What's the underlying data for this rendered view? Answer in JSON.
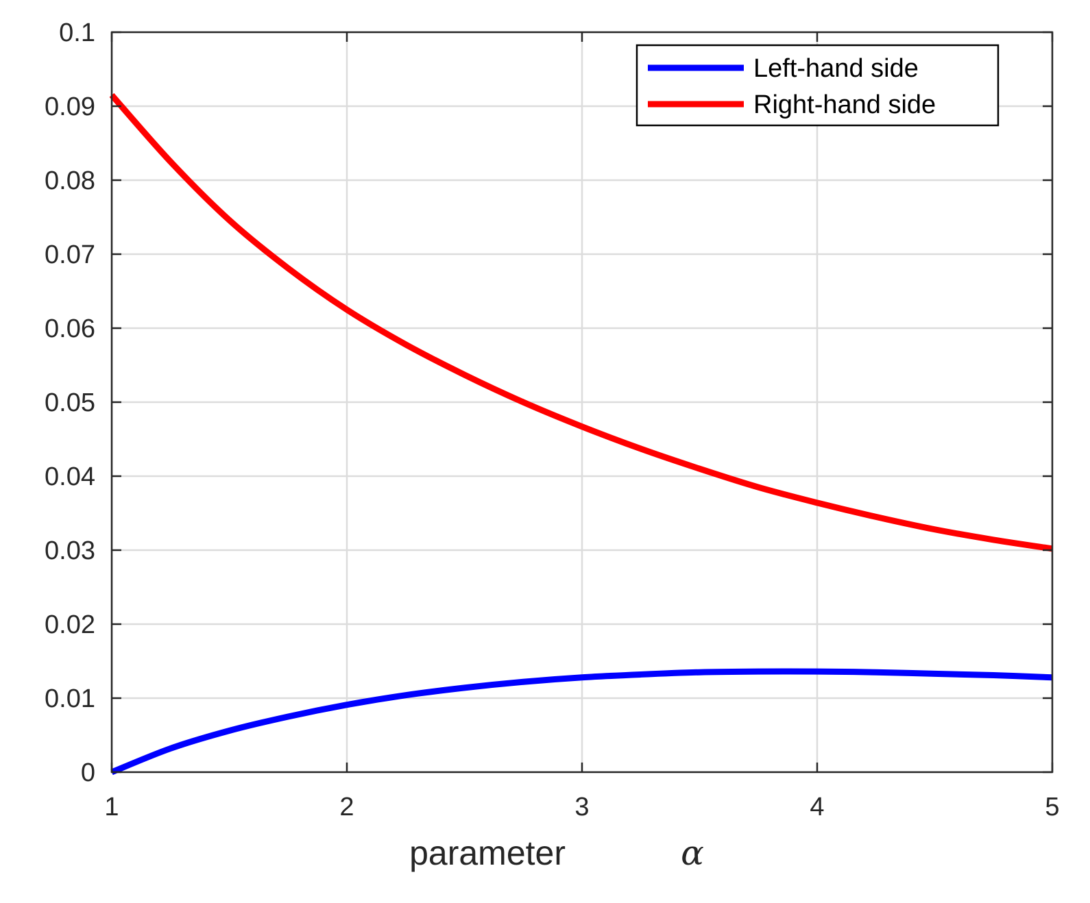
{
  "chart_data": {
    "type": "line",
    "xlabel": "parameter",
    "xlabel_symbol": "α",
    "ylabel": "",
    "xlim": [
      1,
      5
    ],
    "ylim": [
      0,
      0.1
    ],
    "xticks": [
      {
        "value": 1,
        "label": "1"
      },
      {
        "value": 2,
        "label": "2"
      },
      {
        "value": 3,
        "label": "3"
      },
      {
        "value": 4,
        "label": "4"
      },
      {
        "value": 5,
        "label": "5"
      }
    ],
    "yticks": [
      {
        "value": 0,
        "label": "0"
      },
      {
        "value": 0.01,
        "label": "0.01"
      },
      {
        "value": 0.02,
        "label": "0.02"
      },
      {
        "value": 0.03,
        "label": "0.03"
      },
      {
        "value": 0.04,
        "label": "0.04"
      },
      {
        "value": 0.05,
        "label": "0.05"
      },
      {
        "value": 0.06,
        "label": "0.06"
      },
      {
        "value": 0.07,
        "label": "0.07"
      },
      {
        "value": 0.08,
        "label": "0.08"
      },
      {
        "value": 0.09,
        "label": "0.09"
      },
      {
        "value": 0.1,
        "label": "0.1"
      }
    ],
    "grid": true,
    "legend_position": "top-right",
    "series": [
      {
        "name": "Left-hand side",
        "color": "#0000ff",
        "x": [
          1,
          1.25,
          1.5,
          1.75,
          2,
          2.25,
          2.5,
          2.75,
          3,
          3.25,
          3.5,
          3.75,
          4,
          4.25,
          4.5,
          4.75,
          5
        ],
        "y": [
          0,
          0.0032,
          0.0056,
          0.0075,
          0.0091,
          0.0104,
          0.0114,
          0.0122,
          0.0128,
          0.0132,
          0.0135,
          0.0136,
          0.0136,
          0.0135,
          0.0133,
          0.0131,
          0.0128
        ]
      },
      {
        "name": "Right-hand side",
        "color": "#ff0000",
        "x": [
          1,
          1.25,
          1.5,
          1.75,
          2,
          2.25,
          2.5,
          2.75,
          3,
          3.25,
          3.5,
          3.75,
          4,
          4.25,
          4.5,
          4.75,
          5
        ],
        "y": [
          0.0915,
          0.0825,
          0.0746,
          0.0681,
          0.0625,
          0.0578,
          0.0537,
          0.05,
          0.0467,
          0.0437,
          0.041,
          0.0385,
          0.0364,
          0.0345,
          0.0328,
          0.0314,
          0.0302
        ]
      }
    ]
  }
}
